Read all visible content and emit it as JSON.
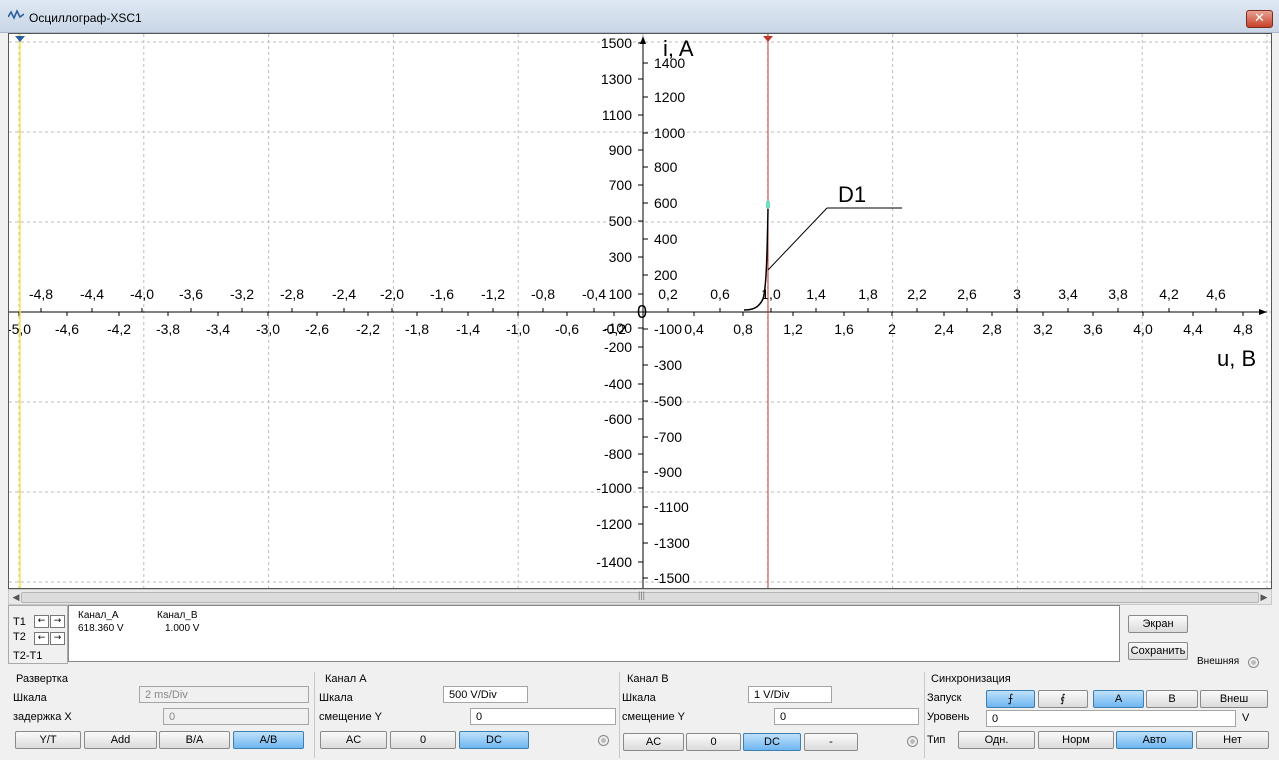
{
  "window": {
    "title": "Осциллограф-XSC1",
    "close_label": "✕"
  },
  "plot": {
    "y_axis_title": "i, A",
    "x_axis_title": "u, B",
    "origin_label": "0",
    "trace_label": "D1",
    "left_y_ticks": [
      "1500",
      "1300",
      "1100",
      "900",
      "700",
      "500",
      "300",
      "100",
      "-100",
      "-200",
      "-400",
      "-600",
      "-800",
      "-1000",
      "-1200",
      "-1400"
    ],
    "right_y_ticks": [
      "1400",
      "1200",
      "1000",
      "800",
      "600",
      "400",
      "200",
      "-100",
      "-300",
      "-500",
      "-700",
      "-900",
      "-1100",
      "-1300",
      "-1500"
    ],
    "upper_x_ticks": [
      "-4,8",
      "-4,4",
      "-4,0",
      "-3,6",
      "-3,2",
      "-2,8",
      "-2,4",
      "-2,0",
      "-1,6",
      "-1,2",
      "-0,8",
      "-0,4",
      "0,2",
      "0,6",
      "1,0",
      "1,4",
      "1,8",
      "2,2",
      "2,6",
      "3",
      "3,4",
      "3,8",
      "4,2",
      "4,6"
    ],
    "lower_x_ticks": [
      "-5,0",
      "-4,6",
      "-4,2",
      "-3,8",
      "-3,4",
      "-3,0",
      "-2,6",
      "-2,2",
      "-1,8",
      "-1,4",
      "-1,0",
      "-0,6",
      "-0,2",
      "0,4",
      "0,8",
      "1,2",
      "1,6",
      "2",
      "2,4",
      "2,8",
      "3,2",
      "3,6",
      "4,0",
      "4,4",
      "4,8"
    ],
    "cursor_colors": {
      "t1": "#f5e83a",
      "t2": "#c0392b"
    },
    "trace_color": "#000000"
  },
  "cursors": {
    "t1_label": "T1",
    "t2_label": "T2",
    "diff_label": "T2-T1",
    "left_arrow": "←",
    "right_arrow": "→"
  },
  "readout": {
    "col_a": "Канал_A",
    "col_b": "Канал_B",
    "t1_a": "618.360 V",
    "t1_b": "1.000 V"
  },
  "side": {
    "screen_btn": "Экран",
    "save_btn": "Сохранить",
    "external_label": "Внешняя"
  },
  "timebase": {
    "title": "Развертка",
    "scale_label": "Шкала",
    "scale_value": "2 ms/Div",
    "delay_label": "задержка X",
    "delay_value": "0",
    "buttons": [
      "Y/T",
      "Add",
      "B/A",
      "A/B"
    ],
    "active": "A/B"
  },
  "channel_a": {
    "title": "Канал A",
    "scale_label": "Шкала",
    "scale_value": "500  V/Div",
    "offset_label": "смещение Y",
    "offset_value": "0",
    "buttons": [
      "AC",
      "0",
      "DC"
    ],
    "active": "DC"
  },
  "channel_b": {
    "title": "Канал B",
    "scale_label": "Шкала",
    "scale_value": "1  V/Div",
    "offset_label": "смещение Y",
    "offset_value": "0",
    "buttons": [
      "AC",
      "0",
      "DC",
      "-"
    ],
    "active": "DC"
  },
  "trigger": {
    "title": "Синхронизация",
    "launch_label": "Запуск",
    "edge_buttons": [
      "⨍",
      "⨐"
    ],
    "source_buttons": [
      "A",
      "B",
      "Внеш"
    ],
    "active_source": "A",
    "level_label": "Уровень",
    "level_value": "0",
    "level_unit": "V",
    "type_label": "Тип",
    "type_buttons": [
      "Одн.",
      "Норм",
      "Авто",
      "Нет"
    ],
    "active_type": "Авто"
  }
}
